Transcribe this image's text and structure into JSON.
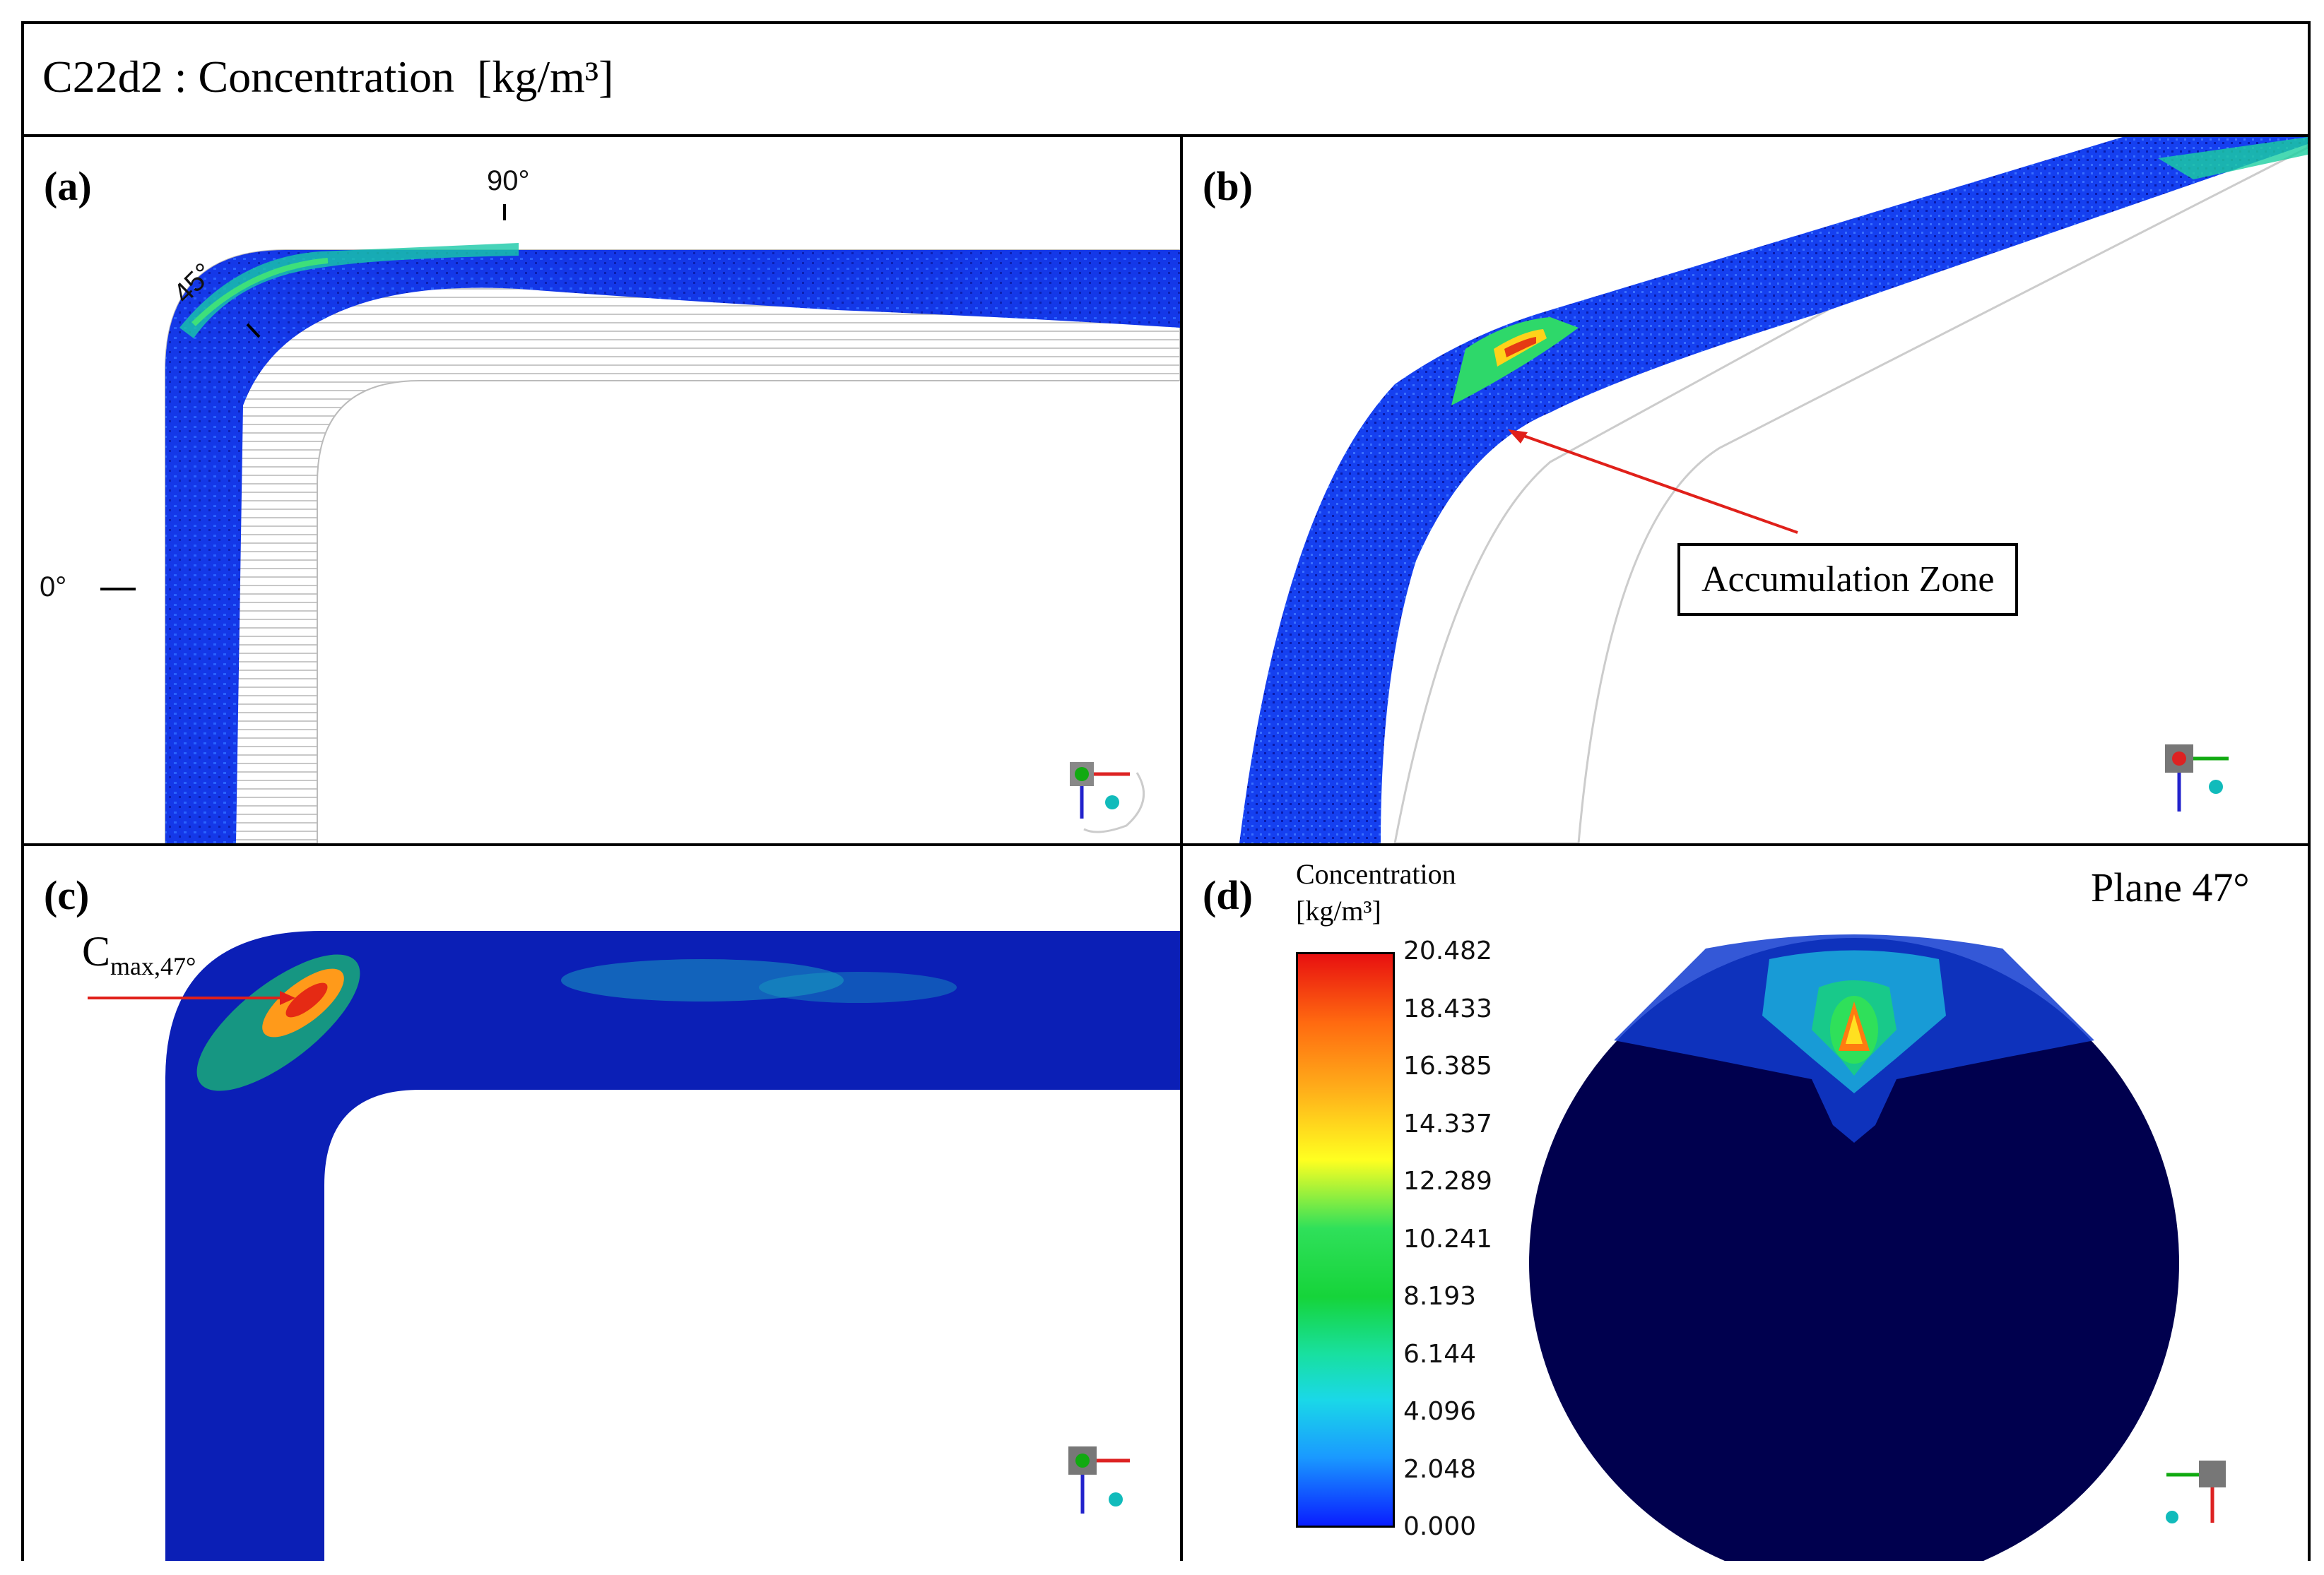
{
  "header": {
    "title": "C22d2 : Concentration",
    "units": "[kg/m³]"
  },
  "panels": {
    "a": {
      "label": "(a)",
      "angle_0": "0°",
      "angle_45": "45°",
      "angle_90": "90°"
    },
    "b": {
      "label": "(b)",
      "callout": "Accumulation Zone"
    },
    "c": {
      "label": "(c)",
      "cmax_main": "C",
      "cmax_sub": "max,47°"
    },
    "d": {
      "label": "(d)",
      "plane": "Plane 47°",
      "legend_title_line1": "Concentration",
      "legend_title_line2": "[kg/m³]",
      "ticks": [
        "20.482",
        "18.433",
        "16.385",
        "14.337",
        "12.289",
        "10.241",
        "8.193",
        "6.144",
        "4.096",
        "2.048",
        "0.000"
      ]
    }
  },
  "colors": {
    "deep_blue": "#0a1fb8",
    "navy": "#00004e",
    "red": "#e0201a"
  }
}
